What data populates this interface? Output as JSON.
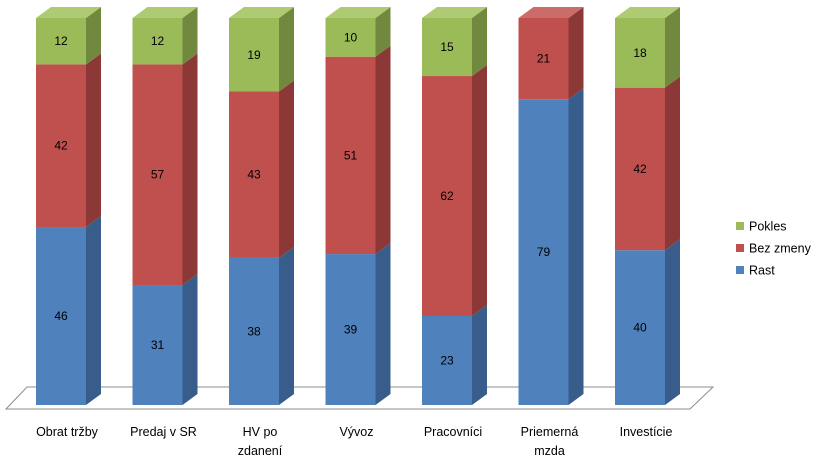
{
  "chart_data": {
    "type": "bar",
    "stacked": true,
    "percent": true,
    "three_d": true,
    "title": "",
    "xlabel": "",
    "ylabel": "",
    "ylim": [
      0,
      100
    ],
    "grid": false,
    "legend_position": "right",
    "categories": [
      [
        "Obrat tržby"
      ],
      [
        "Predaj v SR"
      ],
      [
        "HV po",
        "zdanení"
      ],
      [
        "Vývoz"
      ],
      [
        "Pracovníci"
      ],
      [
        "Priemerná",
        "mzda"
      ],
      [
        "Investície"
      ]
    ],
    "series": [
      {
        "name": "Rast",
        "values": [
          46,
          31,
          38,
          39,
          23,
          79,
          40
        ],
        "color": "#4F81BD",
        "side_color": "#385D8A",
        "top_color": "#6A93C7"
      },
      {
        "name": "Bez zmeny",
        "values": [
          42,
          57,
          43,
          51,
          62,
          21,
          42
        ],
        "color": "#C0504D",
        "side_color": "#8C3836",
        "top_color": "#CB6C6A"
      },
      {
        "name": "Pokles",
        "values": [
          12,
          12,
          19,
          10,
          15,
          null,
          18
        ],
        "color": "#9BBB59",
        "side_color": "#71893F",
        "top_color": "#AECB73"
      }
    ]
  }
}
